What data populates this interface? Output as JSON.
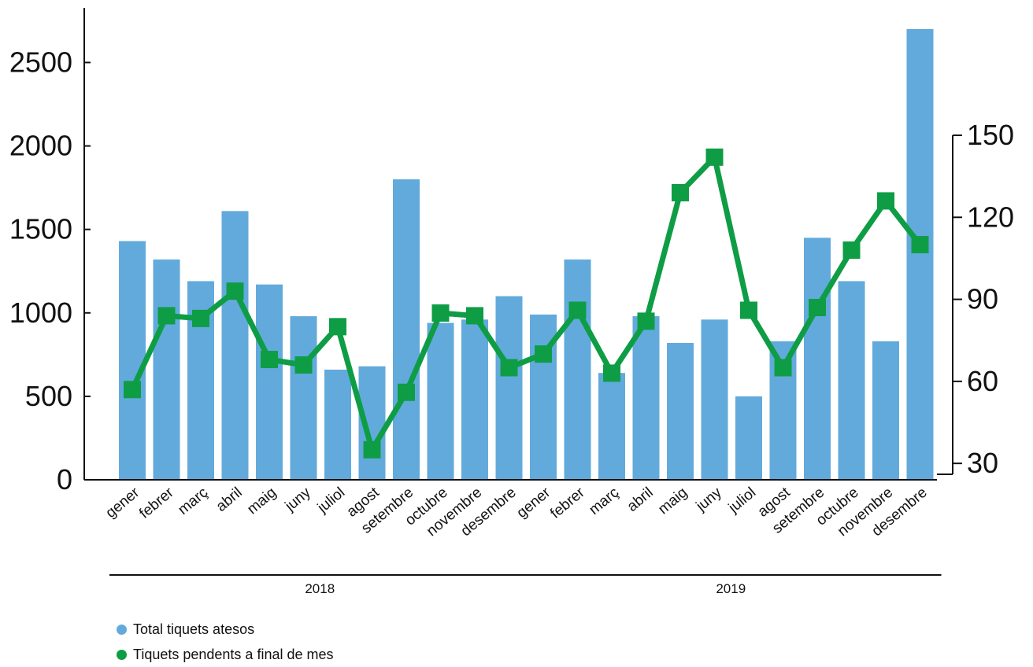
{
  "chart_data": {
    "type": "bar+line",
    "categories": [
      "gener",
      "febrer",
      "març",
      "abril",
      "maig",
      "juny",
      "juliol",
      "agost",
      "setembre",
      "octubre",
      "novembre",
      "desembre",
      "gener",
      "febrer",
      "març",
      "abril",
      "maig",
      "juny",
      "juliol",
      "agost",
      "setembre",
      "octubre",
      "novembre",
      "desembre"
    ],
    "groups": [
      {
        "label": "2018",
        "start": 0,
        "end": 11
      },
      {
        "label": "2019",
        "start": 12,
        "end": 23
      }
    ],
    "series": [
      {
        "name": "Total tiquets atesos",
        "type": "bar",
        "axis": "left",
        "color": "#62aadb",
        "values": [
          1430,
          1320,
          1190,
          1610,
          1170,
          980,
          660,
          680,
          1800,
          940,
          960,
          1100,
          990,
          1320,
          640,
          980,
          820,
          960,
          500,
          830,
          1450,
          1190,
          830,
          2700
        ]
      },
      {
        "name": "Tiquets pendents a final de mes",
        "type": "line",
        "axis": "right",
        "color": "#0e9d45",
        "values": [
          57,
          84,
          83,
          93,
          68,
          66,
          80,
          35,
          56,
          85,
          84,
          65,
          70,
          86,
          63,
          82,
          129,
          142,
          86,
          65,
          87,
          108,
          126,
          110
        ]
      }
    ],
    "left_axis": {
      "ylim": [
        0,
        2800
      ],
      "ticks": [
        0,
        500,
        1000,
        1500,
        2000,
        2500
      ]
    },
    "right_axis": {
      "ylim": [
        24,
        150
      ],
      "ticks": [
        30,
        60,
        90,
        120,
        150
      ]
    },
    "legend_position": "bottom-left"
  }
}
